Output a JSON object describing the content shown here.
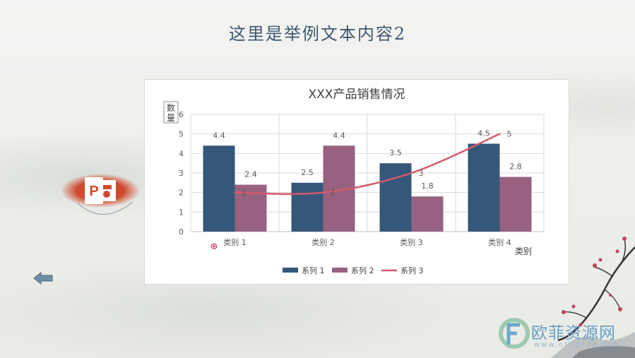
{
  "slide": {
    "title": "这里是举例文本内容2",
    "watermark": {
      "text": "欧菲资源网",
      "url": "www.office26.com"
    }
  },
  "colors": {
    "series_1": "#35587a",
    "series_2": "#976280",
    "series_3": "#d45a6c",
    "title": "#3f5870",
    "ppt_orange": "#c9472a"
  },
  "icons": [
    "powerpoint-icon",
    "back-arrow-icon",
    "plum-branch-decoration"
  ],
  "chart_data": {
    "type": "bar",
    "title": "XXX产品销售情况",
    "xlabel": "类别",
    "ylabel": "数量",
    "categories": [
      "类别 1",
      "类别 2",
      "类别 3",
      "类别 4"
    ],
    "ylim": [
      0,
      6
    ],
    "yticks": [
      "0",
      "1",
      "2",
      "3",
      "4",
      "5",
      "6"
    ],
    "grid": true,
    "legend_position": "bottom",
    "series": [
      {
        "name": "系列 1",
        "kind": "bar",
        "values": [
          4.4,
          2.5,
          3.5,
          4.5
        ],
        "labels": [
          "4.4",
          "2.5",
          "3.5",
          "4.5"
        ]
      },
      {
        "name": "系列 2",
        "kind": "bar",
        "values": [
          2.4,
          4.4,
          1.8,
          2.8
        ],
        "labels": [
          "2.4",
          "4.4",
          "1.8",
          "2.8"
        ]
      },
      {
        "name": "系列 3",
        "kind": "smooth-line",
        "values": [
          2,
          2,
          3,
          5
        ],
        "labels": [
          "2",
          "2",
          "3",
          "5"
        ]
      }
    ]
  }
}
